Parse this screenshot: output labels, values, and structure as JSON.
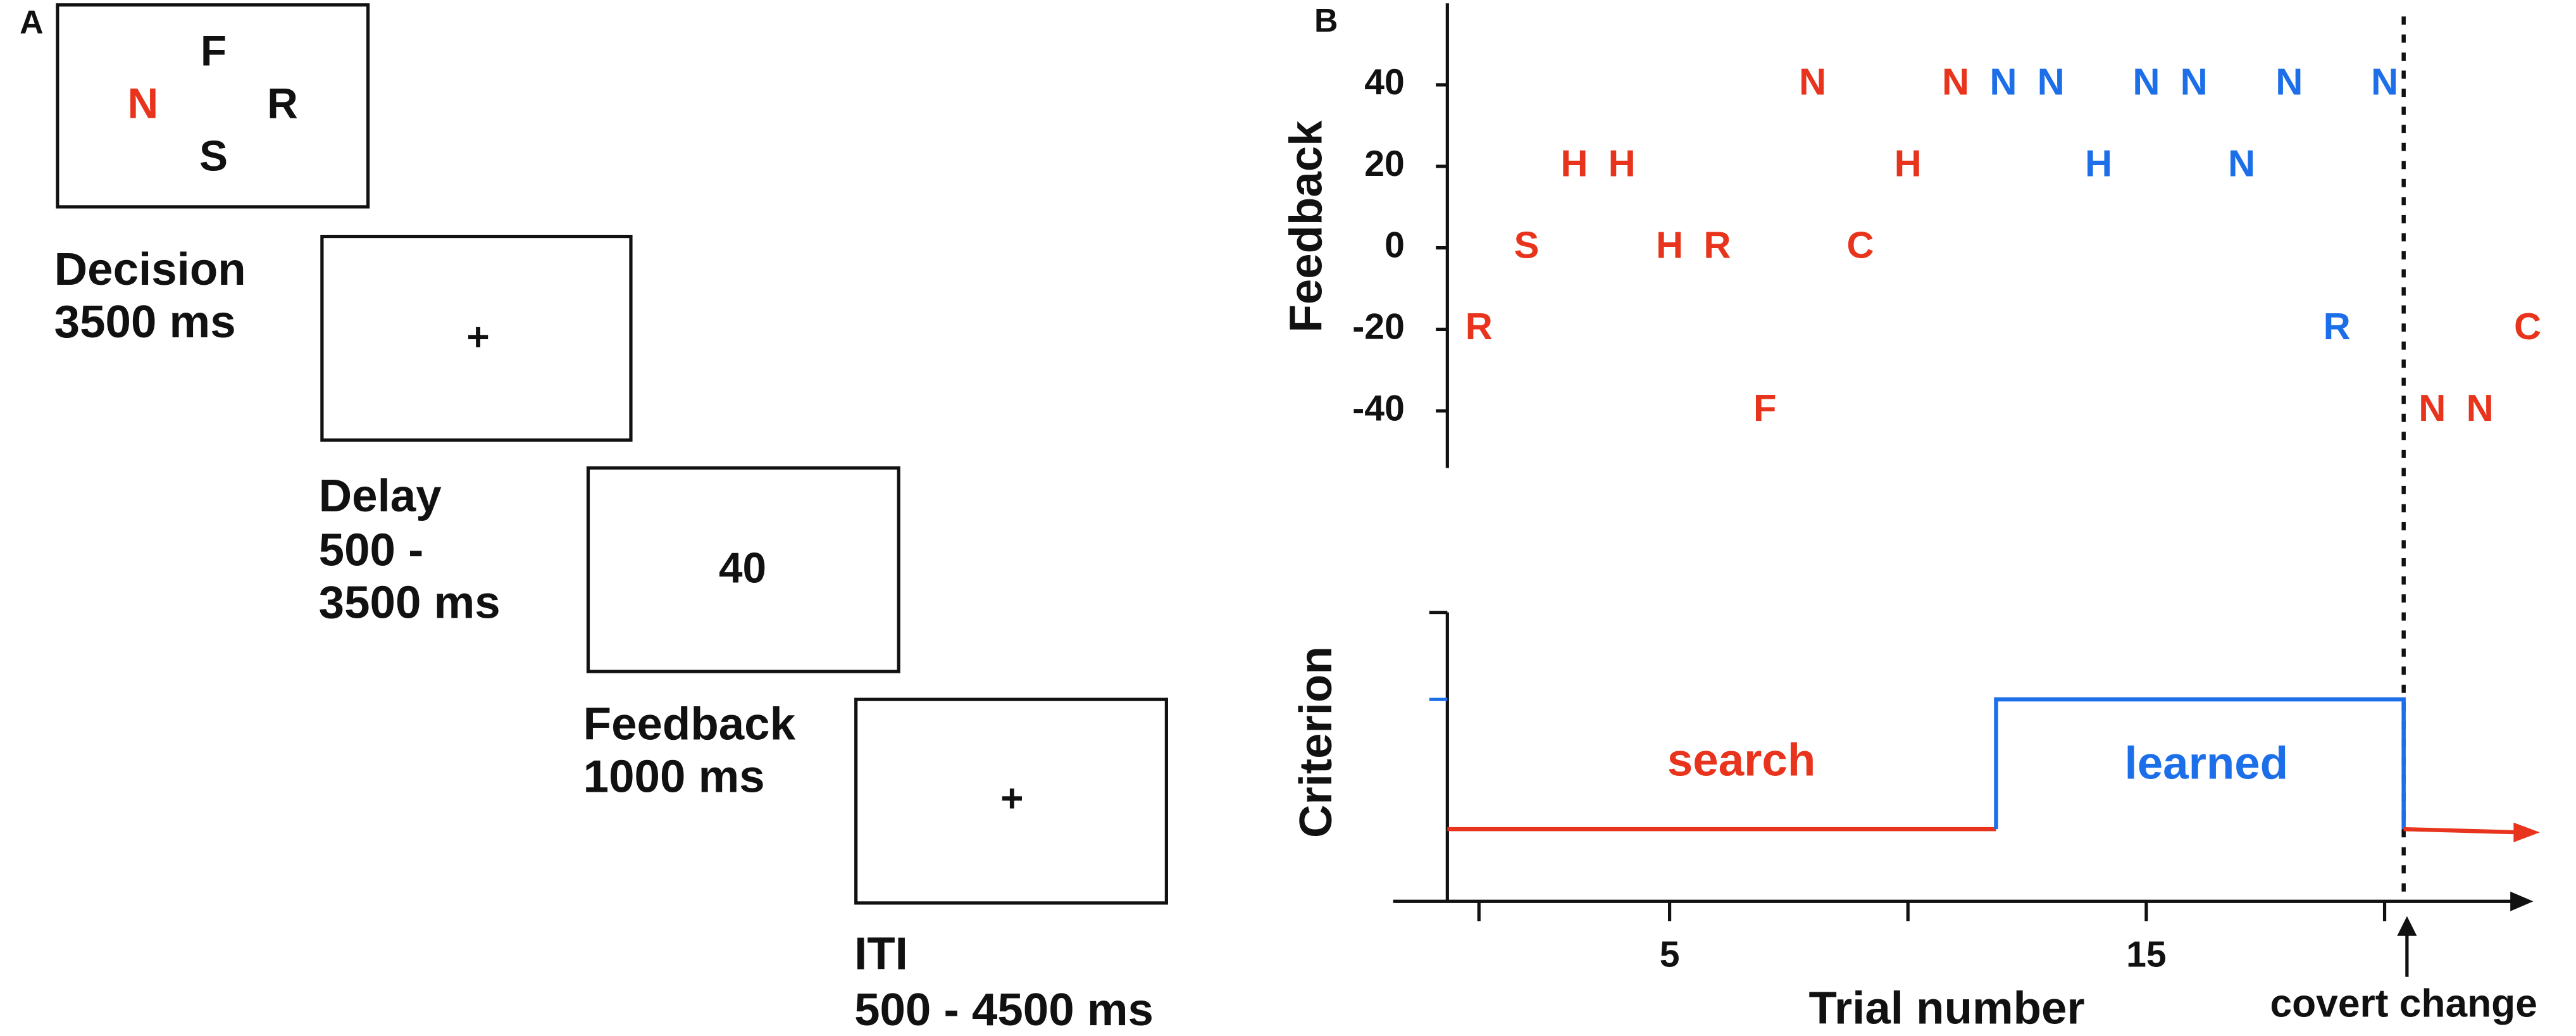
{
  "panel_a": {
    "label": "A",
    "screens": [
      [
        "F",
        "N",
        "R",
        "S"
      ],
      [
        "+"
      ],
      [
        "40"
      ],
      [
        "+"
      ]
    ],
    "steps": [
      {
        "lines": [
          "Decision",
          "3500 ms"
        ]
      },
      {
        "lines": [
          "Delay",
          "500 -",
          "3500 ms"
        ]
      },
      {
        "lines": [
          "Feedback",
          "1000 ms"
        ]
      },
      {
        "lines": [
          "ITI",
          "500 - 4500 ms"
        ]
      }
    ]
  },
  "panel_b": {
    "label": "B",
    "type": "scatter",
    "feedback_axis_title": "Feedback",
    "criterion_axis_title": "Criterion",
    "x_axis_title": "Trial number",
    "change_label": "covert change",
    "change_x": 20.4,
    "phases": [
      "search",
      "learned"
    ],
    "phase_colors": [
      "#e8341c",
      "#1c6fe8"
    ],
    "ylim": [
      -54,
      60
    ],
    "yticks": [
      -40,
      -20,
      0,
      20,
      40
    ],
    "xlim": [
      -0.8,
      23.05
    ],
    "xticks": [
      {
        "value": 1,
        "label": null
      },
      5,
      {
        "value": 10,
        "label": null
      },
      15,
      {
        "value": 20,
        "label": null
      }
    ],
    "points": [
      {
        "label": "R",
        "x": 1,
        "y": -20,
        "color": "#e8341c"
      },
      {
        "label": "S",
        "x": 2,
        "y": 0,
        "color": "#e8341c"
      },
      {
        "label": "H",
        "x": 3,
        "y": 20,
        "color": "#e8341c"
      },
      {
        "label": "H",
        "x": 4,
        "y": 20,
        "color": "#e8341c"
      },
      {
        "label": "H",
        "x": 5,
        "y": 0,
        "color": "#e8341c"
      },
      {
        "label": "R",
        "x": 6,
        "y": 0,
        "color": "#e8341c"
      },
      {
        "label": "F",
        "x": 7,
        "y": -40,
        "color": "#e8341c"
      },
      {
        "label": "N",
        "x": 8,
        "y": 40,
        "color": "#e8341c"
      },
      {
        "label": "C",
        "x": 9,
        "y": 0,
        "color": "#e8341c"
      },
      {
        "label": "H",
        "x": 10,
        "y": 20,
        "color": "#e8341c"
      },
      {
        "label": "N",
        "x": 11,
        "y": 40,
        "color": "#e8341c"
      },
      {
        "label": "N",
        "x": 12,
        "y": 40,
        "color": "#1c6fe8"
      },
      {
        "label": "N",
        "x": 13,
        "y": 40,
        "color": "#1c6fe8"
      },
      {
        "label": "H",
        "x": 14,
        "y": 20,
        "color": "#1c6fe8"
      },
      {
        "label": "N",
        "x": 15,
        "y": 40,
        "color": "#1c6fe8"
      },
      {
        "label": "N",
        "x": 16,
        "y": 40,
        "color": "#1c6fe8"
      },
      {
        "label": "N",
        "x": 17,
        "y": 20,
        "color": "#1c6fe8"
      },
      {
        "label": "N",
        "x": 18,
        "y": 40,
        "color": "#1c6fe8"
      },
      {
        "label": "R",
        "x": 19,
        "y": -20,
        "color": "#1c6fe8"
      },
      {
        "label": "N",
        "x": 20,
        "y": 40,
        "color": "#1c6fe8"
      },
      {
        "label": "N",
        "x": 21,
        "y": -40,
        "color": "#e8341c"
      },
      {
        "label": "N",
        "x": 22,
        "y": -40,
        "color": "#e8341c"
      },
      {
        "label": "C",
        "x": 23,
        "y": -20,
        "color": "#e8341c"
      }
    ]
  }
}
